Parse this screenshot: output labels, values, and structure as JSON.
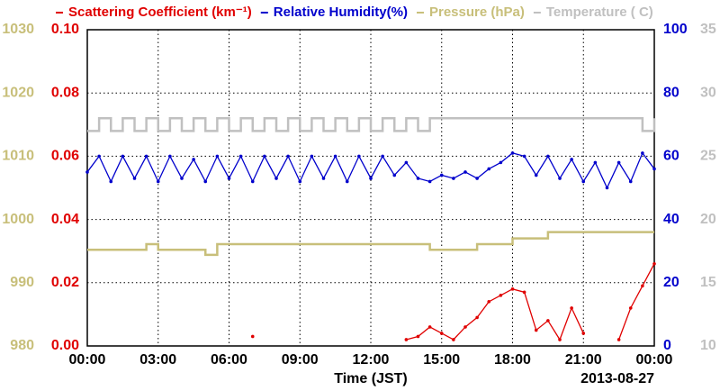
{
  "chart_data": {
    "type": "line",
    "xlabel": "Time (JST)",
    "date_label": "2013-08-27",
    "x": [
      0,
      0.5,
      1,
      1.5,
      2,
      2.5,
      3,
      3.5,
      4,
      4.5,
      5,
      5.5,
      6,
      6.5,
      7,
      7.5,
      8,
      8.5,
      9,
      9.5,
      10,
      10.5,
      11,
      11.5,
      12,
      12.5,
      13,
      13.5,
      14,
      14.5,
      15,
      15.5,
      16,
      16.5,
      17,
      17.5,
      18,
      18.5,
      19,
      19.5,
      20,
      20.5,
      21,
      21.5,
      22,
      22.5,
      23,
      23.5,
      24
    ],
    "xlim": [
      0,
      24
    ],
    "xticks": [
      {
        "value": 0,
        "label": "00:00"
      },
      {
        "value": 3,
        "label": "03:00"
      },
      {
        "value": 6,
        "label": "06:00"
      },
      {
        "value": 9,
        "label": "09:00"
      },
      {
        "value": 12,
        "label": "12:00"
      },
      {
        "value": 15,
        "label": "15:00"
      },
      {
        "value": 18,
        "label": "18:00"
      },
      {
        "value": 21,
        "label": "21:00"
      },
      {
        "value": 24,
        "label": "00:00"
      }
    ],
    "ylim": [
      0,
      0.1
    ],
    "yticks": [
      {
        "value": 0,
        "label": "0.00"
      },
      {
        "value": 0.02,
        "label": "0.02"
      },
      {
        "value": 0.04,
        "label": "0.04"
      },
      {
        "value": 0.06,
        "label": "0.06"
      },
      {
        "value": 0.08,
        "label": "0.08"
      },
      {
        "value": 0.1,
        "label": "0.10"
      }
    ],
    "y2lim": [
      0,
      100
    ],
    "y2ticks": [
      0,
      20,
      40,
      60,
      80,
      100
    ],
    "y3lim": [
      980,
      1030
    ],
    "y3ticks": [
      980,
      990,
      1000,
      1010,
      1020,
      1030
    ],
    "y4lim": [
      10,
      35
    ],
    "y4ticks": [
      10,
      15,
      20,
      25,
      30,
      35
    ],
    "grid": true,
    "series": [
      {
        "name": "Scattering Coefficient (km⁻¹)",
        "color": "#e00000",
        "axis": "y",
        "marker": true,
        "step": false,
        "values": [
          null,
          null,
          null,
          null,
          null,
          null,
          null,
          null,
          null,
          null,
          null,
          null,
          null,
          null,
          0.003,
          null,
          null,
          null,
          null,
          null,
          null,
          null,
          null,
          null,
          null,
          null,
          null,
          0.002,
          0.003,
          0.006,
          0.004,
          0.002,
          0.006,
          0.009,
          0.014,
          0.016,
          0.018,
          0.017,
          0.005,
          0.008,
          0.002,
          0.012,
          0.004,
          null,
          null,
          0.002,
          0.012,
          0.019,
          0.026
        ]
      },
      {
        "name": "Relative Humidity(%)",
        "color": "#0000cc",
        "axis": "y2",
        "marker": true,
        "step": false,
        "values": [
          55,
          60,
          52,
          60,
          53,
          60,
          52,
          60,
          53,
          59,
          52,
          60,
          53,
          60,
          52,
          60,
          53,
          60,
          52,
          60,
          53,
          60,
          52,
          60,
          53,
          60,
          54,
          58,
          53,
          52,
          54,
          53,
          55,
          53,
          56,
          58,
          61,
          60,
          54,
          60,
          53,
          59,
          52,
          58,
          50,
          58,
          52,
          61,
          56
        ]
      },
      {
        "name": "Pressure (hPa)",
        "color": "#c8bf7a",
        "axis": "y3",
        "marker": false,
        "step": true,
        "values": [
          995.2,
          995.2,
          995.2,
          995.2,
          995.2,
          996.1,
          995.2,
          995.2,
          995.2,
          995.2,
          994.4,
          996.1,
          996.1,
          996.1,
          996.1,
          996.1,
          996.1,
          996.1,
          996.1,
          996.1,
          996.1,
          996.1,
          996.1,
          996.1,
          996.1,
          996.1,
          996.1,
          996.1,
          996.1,
          995.2,
          995.2,
          995.2,
          995.2,
          996.1,
          996.1,
          996.1,
          997.0,
          997.0,
          997.0,
          998.0,
          998.0,
          998.0,
          998.0,
          998.0,
          998.0,
          998.0,
          998.0,
          998.0,
          998.0
        ]
      },
      {
        "name": "Temperature ( C)",
        "color": "#c0c0c0",
        "axis": "y4",
        "marker": false,
        "step": true,
        "values": [
          27,
          28,
          27,
          28,
          27,
          28,
          27,
          28,
          27,
          28,
          27,
          28,
          27,
          28,
          27,
          28,
          27,
          28,
          27,
          28,
          27,
          28,
          27,
          28,
          27,
          28,
          27,
          28,
          27,
          28,
          28,
          28,
          28,
          28,
          28,
          28,
          28,
          28,
          28,
          28,
          28,
          28,
          28,
          28,
          28,
          28,
          28,
          27,
          28
        ]
      }
    ]
  }
}
